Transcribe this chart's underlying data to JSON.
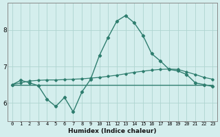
{
  "xlabel": "Humidex (Indice chaleur)",
  "x_values": [
    0,
    1,
    2,
    3,
    4,
    5,
    6,
    7,
    8,
    9,
    10,
    11,
    12,
    13,
    14,
    15,
    16,
    17,
    18,
    19,
    20,
    21,
    22,
    23
  ],
  "line_flat_y": [
    6.5,
    6.5,
    6.5,
    6.5,
    6.5,
    6.5,
    6.5,
    6.5,
    6.5,
    6.5,
    6.5,
    6.5,
    6.5,
    6.5,
    6.5,
    6.5,
    6.5,
    6.5,
    6.5,
    6.5,
    6.5,
    6.5,
    6.5,
    6.5
  ],
  "line_diag_y": [
    6.5,
    6.55,
    6.6,
    6.62,
    6.63,
    6.63,
    6.64,
    6.65,
    6.66,
    6.68,
    6.7,
    6.73,
    6.76,
    6.8,
    6.84,
    6.87,
    6.9,
    6.92,
    6.93,
    6.92,
    6.85,
    6.78,
    6.7,
    6.65
  ],
  "line_main_y": [
    6.5,
    6.62,
    6.55,
    6.47,
    6.1,
    5.9,
    6.15,
    5.75,
    6.3,
    6.65,
    7.3,
    7.8,
    8.25,
    8.4,
    8.2,
    7.85,
    7.35,
    7.15,
    6.92,
    6.88,
    6.78,
    6.55,
    6.5,
    6.45
  ],
  "line_color": "#2e7d6e",
  "background_color": "#d4eeed",
  "grid_color": "#aed4d0",
  "ylim": [
    5.5,
    8.75
  ],
  "yticks": [
    6,
    7,
    8
  ],
  "xlim": [
    -0.5,
    23.5
  ],
  "fig_width": 3.2,
  "fig_height": 2.0,
  "dpi": 100
}
